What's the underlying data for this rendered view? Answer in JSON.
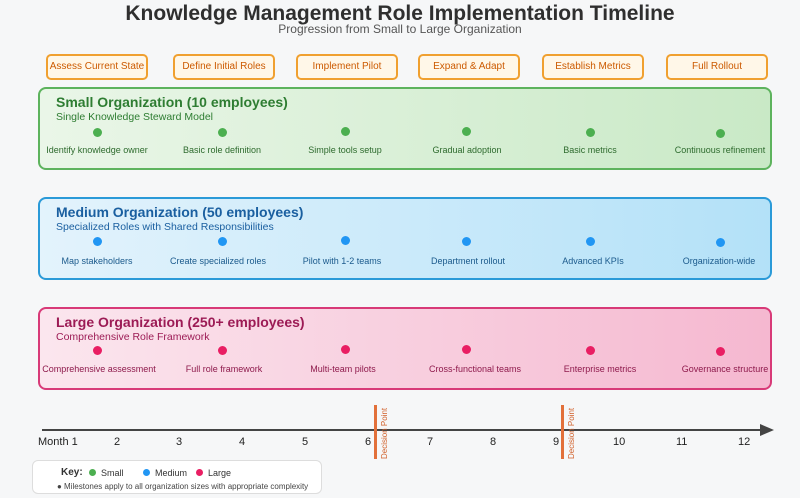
{
  "title": "Knowledge Management Role Implementation Timeline",
  "subtitle": "Progression from Small to Large Organization",
  "phases": [
    "Assess Current State",
    "Define Initial Roles",
    "Implement Pilot",
    "Expand & Adapt",
    "Establish Metrics",
    "Full Rollout"
  ],
  "organizations": [
    {
      "title": "Small Organization (10 employees)",
      "subtitle": "Single Knowledge Steward Model",
      "color": "#4caf50",
      "milestones": [
        "Identify knowledge owner",
        "Basic role definition",
        "Simple tools setup",
        "Gradual adoption",
        "Basic metrics",
        "Continuous refinement"
      ]
    },
    {
      "title": "Medium Organization (50 employees)",
      "subtitle": "Specialized Roles with Shared Responsibilities",
      "color": "#2196f3",
      "milestones": [
        "Map stakeholders",
        "Create specialized roles",
        "Pilot with 1-2 teams",
        "Department rollout",
        "Advanced KPIs",
        "Organization-wide"
      ]
    },
    {
      "title": "Large Organization (250+ employees)",
      "subtitle": "Comprehensive Role Framework",
      "color": "#e91e63",
      "milestones": [
        "Comprehensive assessment",
        "Full role framework",
        "Multi-team pilots",
        "Cross-functional teams",
        "Enterprise metrics",
        "Governance structure"
      ]
    }
  ],
  "timeline": {
    "ticks": [
      "Month 1",
      "2",
      "3",
      "4",
      "5",
      "6",
      "7",
      "8",
      "9",
      "10",
      "11",
      "12"
    ],
    "decision_points": [
      "Decision Point",
      "Decision Point"
    ]
  },
  "key": {
    "title": "Key:",
    "items": [
      {
        "label": "Small",
        "color": "#4caf50"
      },
      {
        "label": "Medium",
        "color": "#2196f3"
      },
      {
        "label": "Large",
        "color": "#e91e63"
      }
    ],
    "note": "● Milestones apply to all organization sizes with appropriate complexity"
  }
}
